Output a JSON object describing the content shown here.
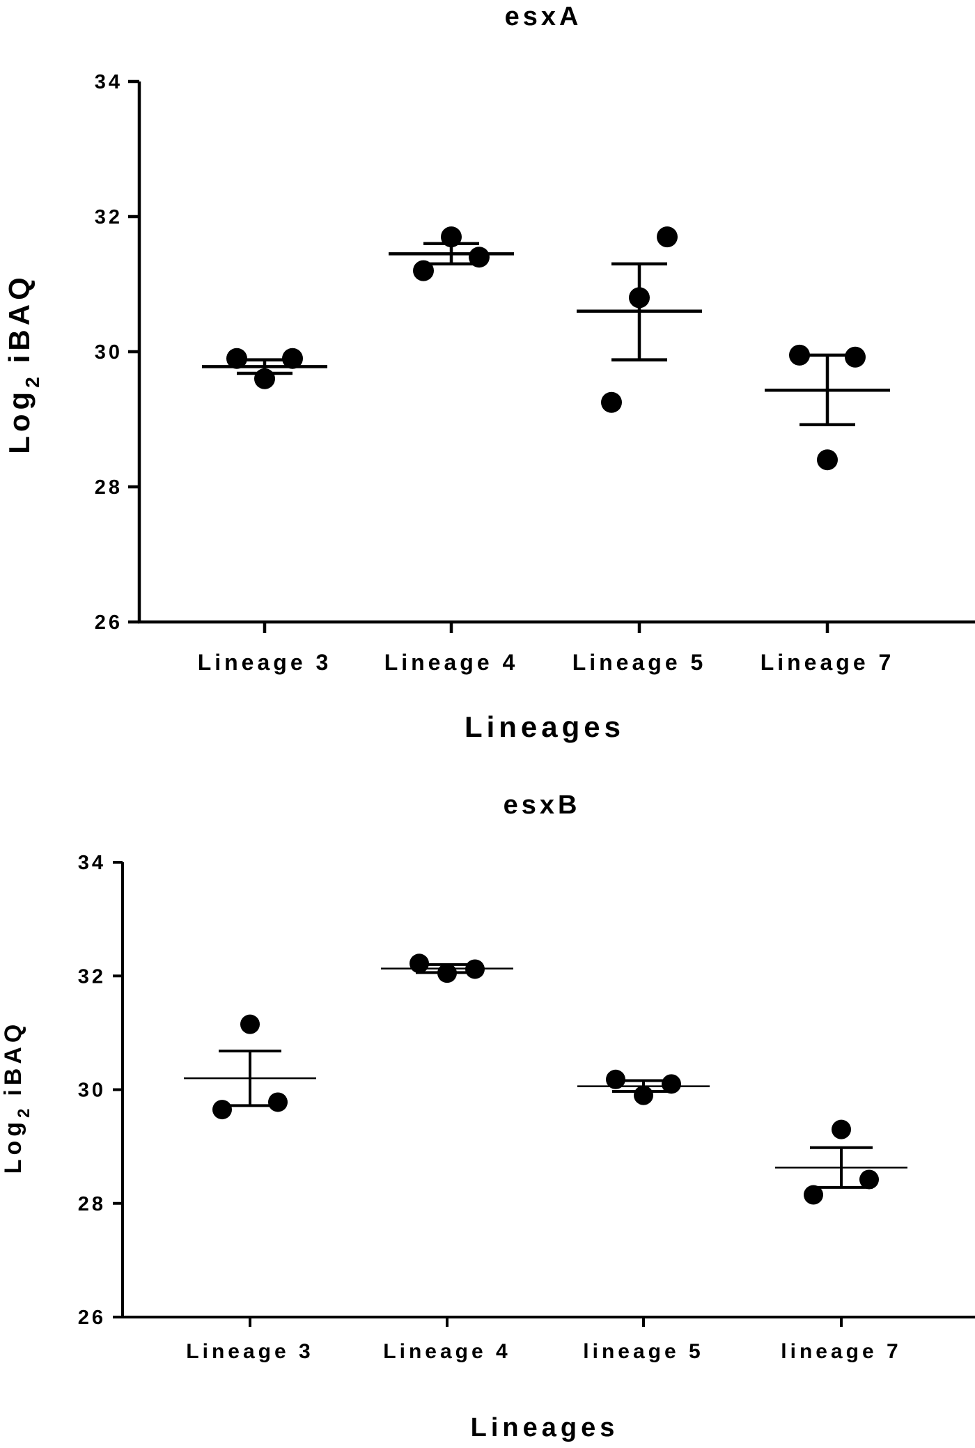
{
  "chart_data": [
    {
      "type": "scatter",
      "title": "esxA",
      "xlabel": "Lineages",
      "ylabel_main": "Log",
      "ylabel_sub": "2",
      "ylabel_rest": "iBAQ",
      "ylim": [
        26,
        34
      ],
      "yticks": [
        "26",
        "28",
        "30",
        "32",
        "34"
      ],
      "categories": [
        "Lineage 3",
        "Lineage 4",
        "Lineage 5",
        "Lineage 7"
      ],
      "points": [
        [
          29.9,
          29.6,
          29.9
        ],
        [
          31.2,
          31.7,
          31.4
        ],
        [
          29.25,
          30.8,
          31.7
        ],
        [
          29.95,
          28.4,
          29.92
        ]
      ],
      "mean": [
        29.78,
        31.45,
        30.6,
        29.43
      ],
      "sem_upper": [
        29.88,
        31.6,
        31.3,
        29.95
      ],
      "sem_lower": [
        29.68,
        31.3,
        29.88,
        28.92
      ]
    },
    {
      "type": "scatter",
      "title": "esxB",
      "xlabel": "Lineages",
      "ylabel_main": "Log",
      "ylabel_sub": "2",
      "ylabel_rest": "iBAQ",
      "ylim": [
        26,
        34
      ],
      "yticks": [
        "26",
        "28",
        "30",
        "32",
        "34"
      ],
      "categories": [
        "Lineage 3",
        "Lineage 4",
        "lineage 5",
        "lineage 7"
      ],
      "points": [
        [
          29.65,
          31.15,
          29.78
        ],
        [
          32.22,
          32.05,
          32.12
        ],
        [
          30.18,
          29.9,
          30.1
        ],
        [
          28.15,
          29.3,
          28.42
        ]
      ],
      "mean": [
        30.2,
        32.13,
        30.06,
        28.63
      ],
      "sem_upper": [
        30.68,
        32.2,
        30.16,
        28.98
      ],
      "sem_lower": [
        29.72,
        32.06,
        29.97,
        28.28
      ]
    }
  ]
}
